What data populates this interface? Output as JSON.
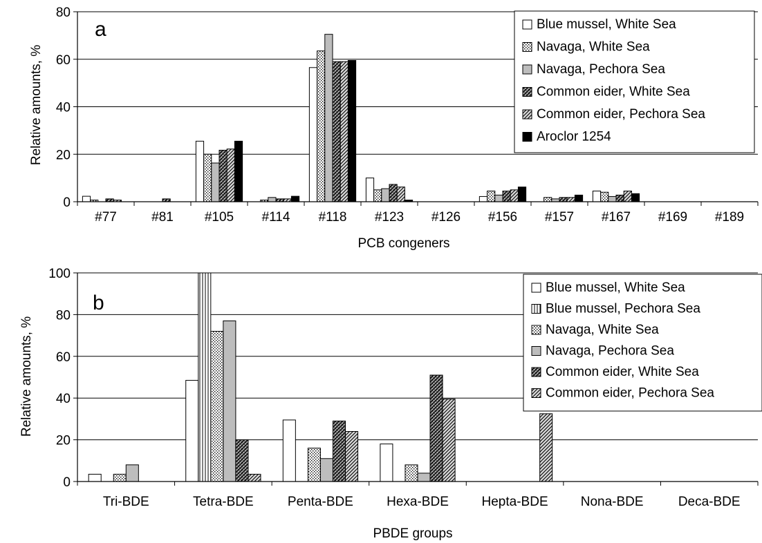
{
  "chart_data": [
    {
      "type": "bar",
      "panel": "a",
      "xlabel": "PCB congeners",
      "ylabel": "Relative amounts, %",
      "ylim": [
        0,
        80
      ],
      "yticks": [
        0,
        20,
        40,
        60,
        80
      ],
      "grid": true,
      "legend_position": "top-right",
      "categories": [
        "#77",
        "#81",
        "#105",
        "#114",
        "#118",
        "#123",
        "#126",
        "#156",
        "#157",
        "#167",
        "#169",
        "#189"
      ],
      "series": [
        {
          "name": "Blue mussel, White Sea",
          "pattern": "white",
          "values": [
            2.3,
            0,
            25.5,
            0,
            56.5,
            10,
            0,
            2.2,
            0,
            4.5,
            0,
            0
          ]
        },
        {
          "name": "Navaga, White Sea",
          "pattern": "dots",
          "values": [
            0.7,
            0,
            20,
            0.7,
            63.5,
            5,
            0,
            4.5,
            1.8,
            4,
            0,
            0
          ]
        },
        {
          "name": "Navaga, Pechora Sea",
          "pattern": "gray",
          "values": [
            0,
            0,
            16.3,
            1.8,
            70.5,
            5.5,
            0,
            2.8,
            1.2,
            2.2,
            0,
            0
          ]
        },
        {
          "name": "Common eider, White Sea",
          "pattern": "crosshatch",
          "values": [
            1.2,
            1.2,
            21.7,
            1.2,
            59,
            7.3,
            0,
            4.5,
            1.8,
            2.8,
            0,
            0
          ]
        },
        {
          "name": "Common eider, Pechora Sea",
          "pattern": "diagonal",
          "values": [
            0.7,
            0,
            22.2,
            1.2,
            59,
            6.2,
            0,
            5,
            1.8,
            4.5,
            0,
            0
          ]
        },
        {
          "name": "Aroclor 1254",
          "pattern": "black",
          "values": [
            0,
            0,
            25.5,
            2.3,
            59.5,
            0.7,
            0,
            6.2,
            2.8,
            3.4,
            0,
            0
          ]
        }
      ],
      "panel_label": "a"
    },
    {
      "type": "bar",
      "panel": "b",
      "xlabel": "PBDE groups",
      "ylabel": "Relative amounts, %",
      "ylim": [
        0,
        100
      ],
      "yticks": [
        0,
        20,
        40,
        60,
        80,
        100
      ],
      "grid": true,
      "legend_position": "top-right",
      "categories": [
        "Tri-BDE",
        "Tetra-BDE",
        "Penta-BDE",
        "Hexa-BDE",
        "Hepta-BDE",
        "Nona-BDE",
        "Deca-BDE"
      ],
      "series": [
        {
          "name": "Blue mussel, White Sea",
          "pattern": "white",
          "values": [
            3.5,
            48.5,
            29.5,
            18,
            0,
            0,
            0
          ]
        },
        {
          "name": "Blue mussel, Pechora Sea",
          "pattern": "vlines",
          "values": [
            0,
            100,
            0,
            0,
            0,
            0,
            0
          ]
        },
        {
          "name": "Navaga, White Sea",
          "pattern": "dots",
          "values": [
            3.5,
            72,
            16,
            8,
            0,
            0,
            0
          ]
        },
        {
          "name": "Navaga, Pechora Sea",
          "pattern": "gray",
          "values": [
            8,
            77,
            11,
            4,
            0,
            0,
            0
          ]
        },
        {
          "name": "Common eider, White Sea",
          "pattern": "crosshatch",
          "values": [
            0,
            20,
            29,
            51,
            0,
            0,
            0
          ]
        },
        {
          "name": "Common eider, Pechora Sea",
          "pattern": "diagonal",
          "values": [
            0,
            3.5,
            24,
            39.5,
            32.5,
            0,
            0
          ]
        }
      ],
      "panel_label": "b"
    }
  ]
}
